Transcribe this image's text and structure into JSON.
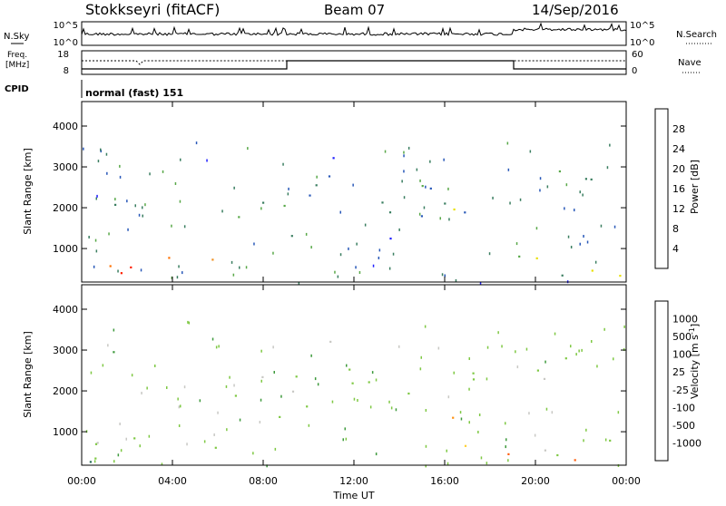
{
  "header": {
    "station": "Stokkseyri (fitACF)",
    "beam": "Beam 07",
    "date": "14/Sep/2016"
  },
  "strips": {
    "nsky_label": "N.Sky",
    "nsky_ticks": [
      "10^5",
      "10^0"
    ],
    "nsearch_label": "N.Search",
    "nsearch_ticks": [
      "10^5",
      "10^0"
    ],
    "freq_label_1": "Freq.",
    "freq_label_2": "[MHz]",
    "freq_ticks": [
      "18",
      "8"
    ],
    "nave_label": "Nave",
    "nave_ticks": [
      "60",
      "0"
    ],
    "cpid_label": "CPID",
    "cpid_value": "normal (fast) 151"
  },
  "chart_data": [
    {
      "type": "heatmap",
      "name": "power",
      "ylabel": "Slant Range [km]",
      "ylim": [
        180,
        4600
      ],
      "yticks": [
        "1000",
        "2000",
        "3000",
        "4000"
      ],
      "xlim": [
        0,
        24
      ],
      "colorbar_label": "Power [dB]",
      "colorbar_ticks": [
        "4",
        "8",
        "12",
        "16",
        "20",
        "24",
        "28"
      ],
      "colors": [
        "#2020ff",
        "#2858b8",
        "#3a7e60",
        "#58a848",
        "#e8e000",
        "#f09020",
        "#ff7000",
        "#ff2000"
      ],
      "regions": [
        {
          "t0": 0.0,
          "t1": 6.0,
          "r0": 400,
          "r1": 960,
          "intensity": 0.85
        },
        {
          "t0": 0.0,
          "t1": 4.0,
          "r0": 180,
          "r1": 450,
          "intensity": 1.0
        },
        {
          "t0": 1.0,
          "t1": 1.6,
          "r0": 1000,
          "r1": 3100,
          "intensity": 0.45
        },
        {
          "t0": 5.8,
          "t1": 8.0,
          "r0": 1700,
          "r1": 2400,
          "intensity": 0.4
        },
        {
          "t0": 8.3,
          "t1": 10.5,
          "r0": 1200,
          "r1": 2700,
          "intensity": 0.4
        },
        {
          "t0": 10.0,
          "t1": 12.0,
          "r0": 2500,
          "r1": 3300,
          "intensity": 0.3
        },
        {
          "t0": 10.5,
          "t1": 17.5,
          "r0": 1900,
          "r1": 2600,
          "intensity": 0.45
        },
        {
          "t0": 12.5,
          "t1": 17.0,
          "r0": 1200,
          "r1": 2000,
          "intensity": 0.25
        },
        {
          "t0": 18.5,
          "t1": 24.0,
          "r0": 180,
          "r1": 1000,
          "intensity": 0.6
        },
        {
          "t0": 20.0,
          "t1": 22.5,
          "r0": 2000,
          "r1": 3000,
          "intensity": 0.3
        }
      ]
    },
    {
      "type": "heatmap",
      "name": "velocity",
      "ylabel": "Slant Range [km]",
      "ylim": [
        180,
        4600
      ],
      "yticks": [
        "1000",
        "2000",
        "3000",
        "4000"
      ],
      "xlabel": "Time UT",
      "xlim": [
        0,
        24
      ],
      "xticks": [
        "00:00",
        "04:00",
        "08:00",
        "12:00",
        "16:00",
        "20:00",
        "00:00"
      ],
      "colorbar_label": "Velocity [m s",
      "colorbar_exp": "-1",
      "colorbar_unit_end": "]",
      "colorbar_ticks": [
        "1000",
        "500",
        "100",
        "25",
        "-25",
        "-100",
        "-500",
        "-1000"
      ],
      "colors": [
        "#1848b8",
        "#2a7058",
        "#3d9a3c",
        "#7ec843",
        "#c8c8c4",
        "#ffd030",
        "#ff9010",
        "#ff6010",
        "#ff1818"
      ],
      "regions": [
        {
          "t0": 0.0,
          "t1": 4.0,
          "r0": 180,
          "r1": 500,
          "category": "100"
        },
        {
          "t0": 0.0,
          "t1": 8.0,
          "r0": 500,
          "r1": 960,
          "category": "25"
        },
        {
          "t0": 0.0,
          "t1": 1.5,
          "r0": 180,
          "r1": 650,
          "category": "500"
        },
        {
          "t0": 1.0,
          "t1": 1.6,
          "r0": 1000,
          "r1": 3100,
          "category": "100"
        },
        {
          "t0": 5.8,
          "t1": 8.0,
          "r0": 1700,
          "r1": 2400,
          "category": "25"
        },
        {
          "t0": 8.3,
          "t1": 10.5,
          "r0": 1200,
          "r1": 2700,
          "category": "25"
        },
        {
          "t0": 10.0,
          "t1": 12.0,
          "r0": 2500,
          "r1": 3400,
          "category": "25"
        },
        {
          "t0": 10.5,
          "t1": 17.5,
          "r0": 1900,
          "r1": 2600,
          "category": "25"
        },
        {
          "t0": 16.0,
          "t1": 18.0,
          "r0": 500,
          "r1": 1500,
          "category": "-100"
        },
        {
          "t0": 18.5,
          "t1": 22.0,
          "r0": 180,
          "r1": 700,
          "category": "-500"
        },
        {
          "t0": 20.0,
          "t1": 24.0,
          "r0": 400,
          "r1": 1000,
          "category": "25"
        },
        {
          "t0": 20.0,
          "t1": 22.5,
          "r0": 2000,
          "r1": 3000,
          "category": "25"
        }
      ]
    }
  ]
}
